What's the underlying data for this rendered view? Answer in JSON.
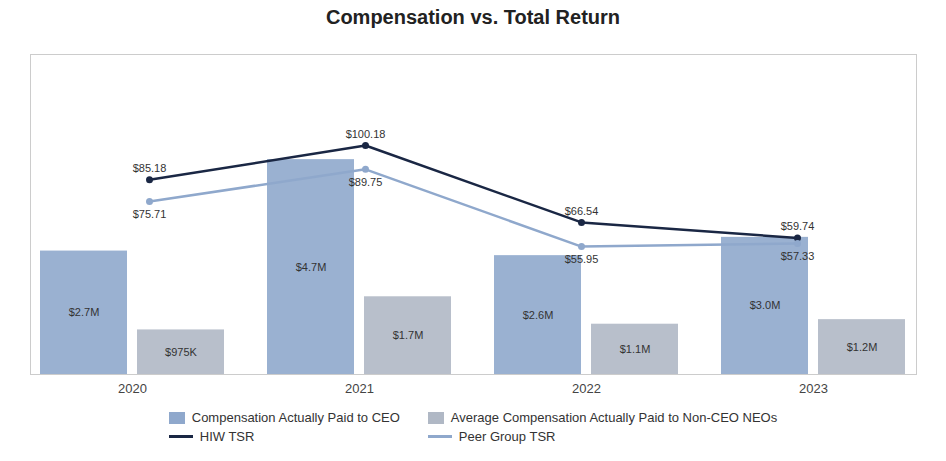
{
  "chart_data": {
    "type": "bar",
    "title": "Compensation vs. Total Return",
    "categories": [
      "2020",
      "2021",
      "2022",
      "2023"
    ],
    "ylim": [
      0,
      7
    ],
    "y2lim": [
      0,
      140
    ],
    "tick_labels": "x",
    "grid": false,
    "data_labels": true,
    "legend": "bottom",
    "series": [
      {
        "name": "Compensation Actually Paid to CEO",
        "type": "bar",
        "color": "#8fa8cc",
        "values": [
          2.7,
          4.7,
          2.6,
          3.0
        ],
        "value_labels": [
          "$2.7M",
          "$4.7M",
          "$2.6M",
          "$3.0M"
        ]
      },
      {
        "name": "Average Compensation Actually Paid to Non-CEO NEOs",
        "type": "bar",
        "color": "#b0b8c5",
        "values": [
          0.975,
          1.7,
          1.1,
          1.2
        ],
        "value_labels": [
          "$975K",
          "$1.7M",
          "$1.1M",
          "$1.2M"
        ]
      },
      {
        "name": "HIW TSR",
        "type": "line",
        "axis": "y2",
        "color": "#1a2744",
        "marker": "circle",
        "values": [
          85.18,
          100.18,
          66.54,
          59.74
        ],
        "value_labels": [
          "$85.18",
          "$100.18",
          "$66.54",
          "$59.74"
        ]
      },
      {
        "name": "Peer Group TSR",
        "type": "line",
        "axis": "y2",
        "color": "#8fa8cc",
        "marker": "circle",
        "values": [
          75.71,
          89.75,
          55.95,
          57.33
        ],
        "value_labels": [
          "$75.71",
          "$89.75",
          "$55.95",
          "$57.33"
        ]
      }
    ]
  }
}
